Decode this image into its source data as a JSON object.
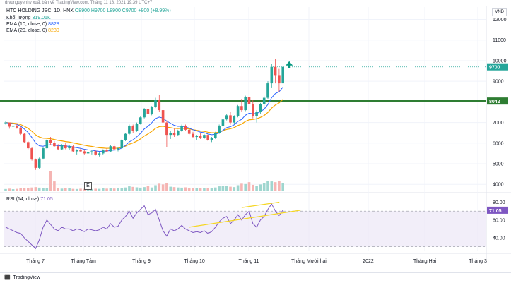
{
  "header": {
    "author_line": "drvunguyenhv xuất bản về TradingView.com, Tháng 11 18, 2021 19:39 UTC+7"
  },
  "legend": {
    "symbol": "HTC HOLDING JSC, 1D, HNX",
    "ohlc": "O8900  H9700  L8900  C9700  +800 (+8.99%)",
    "volume_label": "Khối lượng",
    "volume_value": "319.01K",
    "ema10_label": "EMA (10, close, 0)",
    "ema10_value": "8828",
    "ema20_label": "EMA (20, close, 0)",
    "ema20_value": "8230",
    "rsi_label": "RSI (14, close)",
    "rsi_value": "71.05"
  },
  "unit": "VND",
  "e_marker": "E",
  "footer": {
    "brand": "TradingView"
  },
  "colors": {
    "up": "#26a69a",
    "down": "#ef5350",
    "ema10": "#2962ff",
    "ema20": "#f7a600",
    "rsi": "#7e57c2",
    "support": "#2e7d32",
    "trend": "#f5d623",
    "arrow": "#089981"
  },
  "chart_data": {
    "type": "candlestick",
    "price_axis": {
      "ticks": [
        4000,
        5000,
        6000,
        7000,
        8000,
        9000,
        10000,
        11000,
        12000
      ],
      "ylim": [
        3700,
        12600
      ]
    },
    "time_axis": {
      "labels": [
        "Tháng 7",
        "Tháng Tám",
        "Tháng 9",
        "Tháng 10",
        "Tháng 11",
        "Tháng Mười hai",
        "2022",
        "Tháng Hai",
        "Tháng 3"
      ]
    },
    "price_labels": {
      "last": "9700",
      "support": "8042"
    },
    "support_level": 8042,
    "last_price": 9700,
    "candles": [
      [
        7000,
        7050,
        6900,
        7000
      ],
      [
        7000,
        7000,
        6700,
        6800
      ],
      [
        6800,
        6900,
        6650,
        6850
      ],
      [
        6850,
        6950,
        6700,
        6750
      ],
      [
        6750,
        6800,
        6400,
        6450
      ],
      [
        6450,
        6500,
        6000,
        6050
      ],
      [
        6050,
        6100,
        5700,
        5750
      ],
      [
        5750,
        5800,
        5150,
        5200
      ],
      [
        5200,
        5250,
        4700,
        4800
      ],
      [
        4800,
        5300,
        4750,
        5250
      ],
      [
        5250,
        5800,
        5200,
        5750
      ],
      [
        5750,
        6200,
        5700,
        6150
      ],
      [
        6150,
        6300,
        5900,
        6000
      ],
      [
        6000,
        6100,
        5800,
        5850
      ],
      [
        5850,
        5950,
        5650,
        5700
      ],
      [
        5700,
        5950,
        5650,
        5900
      ],
      [
        5900,
        6000,
        5700,
        5750
      ],
      [
        5750,
        5900,
        5650,
        5850
      ],
      [
        5850,
        5900,
        5550,
        5600
      ],
      [
        5600,
        5700,
        5450,
        5650
      ],
      [
        5650,
        5750,
        5550,
        5600
      ],
      [
        5600,
        5700,
        5450,
        5500
      ],
      [
        5500,
        5600,
        5350,
        5550
      ],
      [
        5550,
        5650,
        5450,
        5600
      ],
      [
        5600,
        5650,
        5400,
        5450
      ],
      [
        5450,
        5550,
        5350,
        5500
      ],
      [
        5500,
        5700,
        5450,
        5650
      ],
      [
        5650,
        5750,
        5550,
        5600
      ],
      [
        5600,
        5900,
        5550,
        5850
      ],
      [
        5850,
        5950,
        5650,
        5700
      ],
      [
        5700,
        5800,
        5600,
        5750
      ],
      [
        5750,
        6200,
        5700,
        6150
      ],
      [
        6150,
        6500,
        6100,
        6450
      ],
      [
        6450,
        6900,
        6400,
        6850
      ],
      [
        6850,
        6900,
        6500,
        6600
      ],
      [
        6600,
        7000,
        6550,
        6950
      ],
      [
        6950,
        7300,
        6900,
        7250
      ],
      [
        7250,
        7700,
        7200,
        7650
      ],
      [
        7650,
        7750,
        7350,
        7400
      ],
      [
        7400,
        7800,
        7350,
        7750
      ],
      [
        7750,
        8200,
        7700,
        8100
      ],
      [
        8100,
        8350,
        7500,
        7600
      ],
      [
        7600,
        7700,
        6900,
        7000
      ],
      [
        7000,
        7100,
        5800,
        6400
      ],
      [
        6400,
        6600,
        6200,
        6500
      ],
      [
        6500,
        6700,
        6300,
        6400
      ],
      [
        6400,
        6650,
        6350,
        6600
      ],
      [
        6600,
        6900,
        6550,
        6850
      ],
      [
        6850,
        6900,
        6600,
        6650
      ],
      [
        6650,
        6700,
        6400,
        6450
      ],
      [
        6450,
        6550,
        6250,
        6300
      ],
      [
        6300,
        6400,
        6150,
        6350
      ],
      [
        6350,
        6500,
        6200,
        6250
      ],
      [
        6250,
        6450,
        6200,
        6400
      ],
      [
        6400,
        6450,
        6100,
        6150
      ],
      [
        6150,
        6300,
        6050,
        6250
      ],
      [
        6250,
        6550,
        6200,
        6500
      ],
      [
        6500,
        6900,
        6450,
        6850
      ],
      [
        6850,
        7200,
        6800,
        7150
      ],
      [
        7150,
        7400,
        7100,
        7350
      ],
      [
        7350,
        7500,
        6900,
        7000
      ],
      [
        7000,
        7350,
        6950,
        7300
      ],
      [
        7300,
        7850,
        7250,
        7800
      ],
      [
        7800,
        8150,
        7500,
        7600
      ],
      [
        7600,
        8300,
        7550,
        8250
      ],
      [
        8250,
        8700,
        7800,
        7900
      ],
      [
        7900,
        8100,
        7200,
        7300
      ],
      [
        7300,
        7600,
        7000,
        7500
      ],
      [
        7500,
        7950,
        7400,
        7900
      ],
      [
        7900,
        8300,
        7700,
        8200
      ],
      [
        8200,
        9000,
        8150,
        8900
      ],
      [
        8900,
        9850,
        8700,
        9700
      ],
      [
        9700,
        10100,
        8900,
        9300
      ],
      [
        9300,
        9600,
        8500,
        8900
      ],
      [
        8900,
        9700,
        8900,
        9700
      ]
    ],
    "volumes": [
      20,
      25,
      18,
      22,
      30,
      28,
      35,
      40,
      45,
      38,
      30,
      32,
      260,
      120,
      35,
      25,
      28,
      30,
      22,
      20,
      24,
      22,
      26,
      20,
      24,
      22,
      28,
      25,
      30,
      26,
      28,
      35,
      40,
      55,
      48,
      42,
      38,
      45,
      60,
      40,
      70,
      90,
      80,
      95,
      50,
      45,
      40,
      38,
      42,
      35,
      30,
      32,
      28,
      30,
      34,
      36,
      40,
      55,
      60,
      58,
      50,
      45,
      70,
      90,
      85,
      110,
      75,
      60,
      80,
      95,
      130,
      120,
      110,
      125,
      100
    ],
    "rsi": {
      "ticks": [
        40,
        60,
        80
      ],
      "band": [
        30,
        70
      ],
      "ylim": [
        25,
        82
      ],
      "values": [
        52,
        50,
        48,
        46,
        45,
        40,
        36,
        32,
        28,
        38,
        52,
        60,
        55,
        50,
        48,
        52,
        50,
        50,
        48,
        50,
        49,
        47,
        50,
        49,
        48,
        49,
        52,
        50,
        56,
        52,
        53,
        60,
        64,
        70,
        62,
        68,
        72,
        76,
        66,
        68,
        72,
        60,
        48,
        42,
        50,
        48,
        50,
        54,
        50,
        48,
        46,
        47,
        46,
        48,
        45,
        47,
        52,
        58,
        62,
        64,
        56,
        60,
        66,
        60,
        66,
        70,
        56,
        52,
        60,
        64,
        72,
        78,
        70,
        65,
        71
      ]
    }
  }
}
